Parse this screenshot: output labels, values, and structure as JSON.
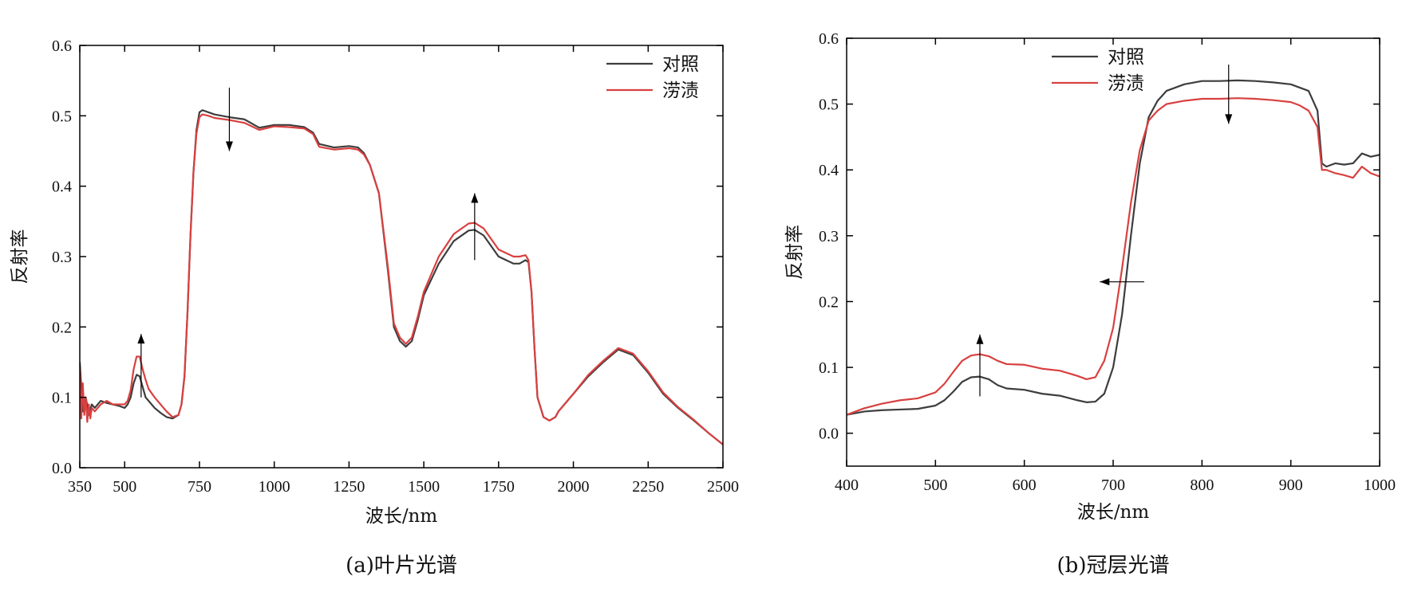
{
  "chart_data": [
    {
      "type": "line",
      "caption": "(a)叶片光谱",
      "xlabel": "波长/nm",
      "ylabel": "反射率",
      "xlim": [
        350,
        2500
      ],
      "ylim": [
        0.0,
        0.6
      ],
      "xticks": [
        350,
        500,
        750,
        1000,
        1250,
        1500,
        1750,
        2000,
        2250,
        2500
      ],
      "xtick_labels": [
        "350",
        "500",
        "750",
        "1000",
        "1250",
        "1500",
        "1750",
        "2000",
        "2250",
        "2500"
      ],
      "yticks": [
        0.0,
        0.1,
        0.2,
        0.3,
        0.4,
        0.5,
        0.6
      ],
      "ytick_labels": [
        "0.0",
        "0.1",
        "0.2",
        "0.3",
        "0.4",
        "0.5",
        "0.6"
      ],
      "legend": "top-right",
      "grid": false,
      "series": [
        {
          "name": "对照",
          "color": "#3d3d3d",
          "x": [
            350,
            360,
            370,
            380,
            390,
            400,
            420,
            440,
            460,
            480,
            500,
            510,
            520,
            530,
            540,
            550,
            560,
            570,
            580,
            600,
            620,
            640,
            660,
            680,
            690,
            700,
            710,
            720,
            730,
            740,
            750,
            760,
            780,
            800,
            850,
            900,
            950,
            1000,
            1050,
            1100,
            1130,
            1150,
            1200,
            1250,
            1280,
            1300,
            1320,
            1350,
            1380,
            1400,
            1420,
            1440,
            1460,
            1480,
            1500,
            1550,
            1600,
            1650,
            1670,
            1700,
            1750,
            1800,
            1820,
            1840,
            1850,
            1860,
            1870,
            1880,
            1900,
            1920,
            1940,
            1950,
            2000,
            2050,
            2100,
            2150,
            2200,
            2250,
            2300,
            2350,
            2400,
            2450,
            2500
          ],
          "y": [
            0.15,
            0.08,
            0.1,
            0.075,
            0.09,
            0.085,
            0.095,
            0.092,
            0.09,
            0.088,
            0.085,
            0.09,
            0.1,
            0.12,
            0.132,
            0.13,
            0.115,
            0.1,
            0.095,
            0.085,
            0.078,
            0.072,
            0.07,
            0.075,
            0.09,
            0.13,
            0.22,
            0.33,
            0.42,
            0.48,
            0.505,
            0.508,
            0.505,
            0.502,
            0.498,
            0.495,
            0.483,
            0.487,
            0.487,
            0.484,
            0.476,
            0.46,
            0.455,
            0.457,
            0.455,
            0.447,
            0.43,
            0.39,
            0.28,
            0.2,
            0.18,
            0.172,
            0.18,
            0.21,
            0.245,
            0.29,
            0.322,
            0.337,
            0.338,
            0.33,
            0.3,
            0.29,
            0.29,
            0.295,
            0.292,
            0.25,
            0.17,
            0.1,
            0.072,
            0.067,
            0.072,
            0.08,
            0.105,
            0.13,
            0.15,
            0.168,
            0.16,
            0.135,
            0.105,
            0.085,
            0.068,
            0.05,
            0.033
          ]
        },
        {
          "name": "涝渍",
          "color": "#d94040",
          "x": [
            350,
            355,
            360,
            365,
            370,
            375,
            380,
            385,
            390,
            400,
            420,
            440,
            460,
            480,
            500,
            510,
            520,
            530,
            540,
            550,
            560,
            570,
            580,
            600,
            620,
            640,
            660,
            680,
            690,
            700,
            710,
            720,
            730,
            740,
            750,
            760,
            780,
            800,
            850,
            900,
            950,
            1000,
            1050,
            1100,
            1130,
            1150,
            1200,
            1250,
            1280,
            1300,
            1320,
            1350,
            1380,
            1400,
            1420,
            1440,
            1460,
            1480,
            1500,
            1550,
            1600,
            1650,
            1670,
            1700,
            1750,
            1800,
            1820,
            1840,
            1850,
            1860,
            1870,
            1880,
            1900,
            1920,
            1940,
            1950,
            2000,
            2050,
            2100,
            2150,
            2200,
            2250,
            2300,
            2350,
            2400,
            2450,
            2500
          ],
          "y": [
            0.14,
            0.07,
            0.12,
            0.075,
            0.1,
            0.065,
            0.09,
            0.07,
            0.085,
            0.08,
            0.09,
            0.095,
            0.09,
            0.09,
            0.09,
            0.095,
            0.11,
            0.14,
            0.158,
            0.158,
            0.14,
            0.125,
            0.112,
            0.1,
            0.09,
            0.08,
            0.072,
            0.075,
            0.09,
            0.13,
            0.22,
            0.33,
            0.42,
            0.475,
            0.498,
            0.502,
            0.5,
            0.497,
            0.494,
            0.49,
            0.48,
            0.485,
            0.484,
            0.482,
            0.474,
            0.456,
            0.452,
            0.454,
            0.452,
            0.445,
            0.43,
            0.39,
            0.285,
            0.205,
            0.185,
            0.176,
            0.185,
            0.215,
            0.25,
            0.3,
            0.332,
            0.347,
            0.348,
            0.34,
            0.31,
            0.3,
            0.3,
            0.302,
            0.295,
            0.25,
            0.17,
            0.1,
            0.072,
            0.067,
            0.072,
            0.08,
            0.105,
            0.132,
            0.152,
            0.17,
            0.162,
            0.137,
            0.107,
            0.086,
            0.069,
            0.05,
            0.033
          ]
        }
      ],
      "arrows": [
        {
          "x": 555,
          "y1": 0.1,
          "y2": 0.19
        },
        {
          "x": 850,
          "y1": 0.54,
          "y2": 0.45
        },
        {
          "x": 1670,
          "y1": 0.295,
          "y2": 0.39
        }
      ]
    },
    {
      "type": "line",
      "caption": "(b)冠层光谱",
      "xlabel": "波长/nm",
      "ylabel": "反射率",
      "xlim": [
        400,
        1000
      ],
      "ylim": [
        -0.05,
        0.6
      ],
      "xticks": [
        400,
        500,
        600,
        700,
        800,
        900,
        1000
      ],
      "xtick_labels": [
        "400",
        "500",
        "600",
        "700",
        "800",
        "900",
        "1000"
      ],
      "yticks": [
        0.0,
        0.1,
        0.2,
        0.3,
        0.4,
        0.5,
        0.6
      ],
      "ytick_labels": [
        "0.0",
        "0.1",
        "0.2",
        "0.3",
        "0.4",
        "0.5",
        "0.6"
      ],
      "legend": "top-left",
      "grid": false,
      "series": [
        {
          "name": "对照",
          "color": "#3d3d3d",
          "x": [
            400,
            420,
            440,
            460,
            480,
            500,
            510,
            520,
            530,
            540,
            550,
            560,
            570,
            580,
            600,
            620,
            640,
            660,
            670,
            680,
            690,
            700,
            710,
            720,
            730,
            740,
            750,
            760,
            780,
            800,
            820,
            840,
            860,
            880,
            900,
            910,
            920,
            930,
            935,
            940,
            950,
            960,
            970,
            980,
            990,
            1000
          ],
          "y": [
            0.028,
            0.033,
            0.035,
            0.036,
            0.037,
            0.042,
            0.05,
            0.063,
            0.078,
            0.085,
            0.086,
            0.082,
            0.073,
            0.068,
            0.066,
            0.06,
            0.057,
            0.05,
            0.047,
            0.048,
            0.06,
            0.1,
            0.18,
            0.3,
            0.41,
            0.48,
            0.505,
            0.52,
            0.53,
            0.535,
            0.535,
            0.536,
            0.535,
            0.533,
            0.53,
            0.525,
            0.52,
            0.49,
            0.41,
            0.405,
            0.41,
            0.408,
            0.41,
            0.425,
            0.42,
            0.423
          ]
        },
        {
          "name": "涝渍",
          "color": "#d94040",
          "x": [
            400,
            420,
            440,
            460,
            480,
            500,
            510,
            520,
            530,
            540,
            550,
            560,
            570,
            580,
            600,
            620,
            640,
            660,
            670,
            680,
            690,
            700,
            710,
            720,
            730,
            740,
            750,
            760,
            780,
            800,
            820,
            840,
            860,
            880,
            900,
            910,
            920,
            930,
            935,
            940,
            950,
            960,
            970,
            980,
            990,
            1000
          ],
          "y": [
            0.028,
            0.038,
            0.045,
            0.05,
            0.053,
            0.062,
            0.075,
            0.093,
            0.11,
            0.118,
            0.12,
            0.117,
            0.11,
            0.105,
            0.104,
            0.098,
            0.095,
            0.087,
            0.082,
            0.085,
            0.11,
            0.16,
            0.25,
            0.35,
            0.43,
            0.475,
            0.49,
            0.5,
            0.505,
            0.508,
            0.508,
            0.509,
            0.508,
            0.506,
            0.503,
            0.498,
            0.49,
            0.465,
            0.4,
            0.4,
            0.395,
            0.392,
            0.388,
            0.405,
            0.395,
            0.39
          ]
        }
      ],
      "arrows": [
        {
          "x": 550,
          "y1": 0.056,
          "y2": 0.15
        },
        {
          "x": 830,
          "y1": 0.56,
          "y2": 0.47
        }
      ],
      "harrows": [
        {
          "y": 0.23,
          "x1": 735,
          "x2": 685
        }
      ]
    }
  ]
}
